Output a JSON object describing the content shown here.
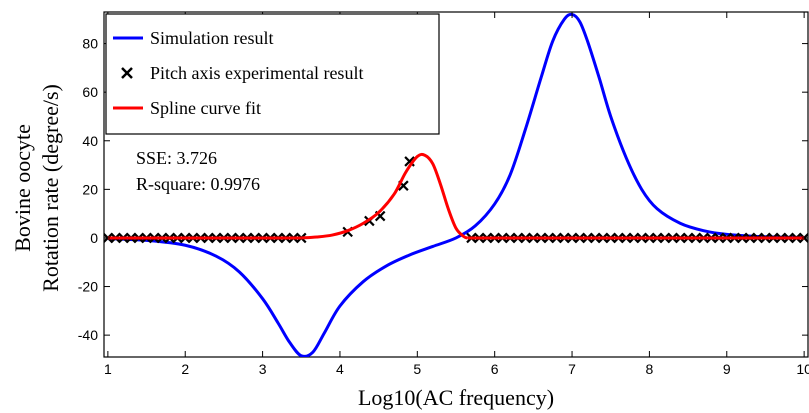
{
  "chart_data": {
    "type": "line",
    "xlabel": "Log10(AC frequency)",
    "ylabel_lines": [
      "Bovine oocyte",
      "Rotation rate (degree/s)"
    ],
    "xlim": [
      0.95,
      10.05
    ],
    "ylim": [
      -49,
      93
    ],
    "x_ticks": [
      1,
      2,
      3,
      4,
      5,
      6,
      7,
      8,
      9,
      10
    ],
    "y_ticks": [
      -40,
      -20,
      0,
      20,
      40,
      60,
      80
    ],
    "grid": false,
    "legend_position": "top-left",
    "annotations": [
      "SSE: 3.726",
      "R-square: 0.9976"
    ],
    "series": [
      {
        "name": "Simulation result",
        "style": "line",
        "color": "#0000ff",
        "x": [
          1.0,
          1.5,
          2.0,
          2.4,
          2.7,
          3.0,
          3.2,
          3.35,
          3.5,
          3.65,
          3.8,
          4.0,
          4.3,
          4.6,
          4.9,
          5.2,
          5.5,
          5.75,
          6.0,
          6.2,
          6.4,
          6.6,
          6.75,
          6.9,
          7.0,
          7.1,
          7.2,
          7.35,
          7.5,
          7.7,
          7.9,
          8.1,
          8.4,
          8.7,
          9.0,
          9.5,
          10.0
        ],
        "y": [
          -0.3,
          -1.0,
          -3.0,
          -7.5,
          -14.0,
          -25.0,
          -35.0,
          -43.0,
          -48.5,
          -47.0,
          -39.0,
          -28.0,
          -18.0,
          -11.5,
          -7.0,
          -3.5,
          0.0,
          5.0,
          14.0,
          26.0,
          45.0,
          66.0,
          81.0,
          90.0,
          92.0,
          89.0,
          81.0,
          66.0,
          50.0,
          33.0,
          20.0,
          12.0,
          6.0,
          3.0,
          1.5,
          0.5,
          0.2
        ]
      },
      {
        "name": "Pitch axis experimental result",
        "style": "marker-x",
        "color": "#000000",
        "x": [
          1.0,
          1.1,
          1.2,
          1.3,
          1.4,
          1.5,
          1.6,
          1.7,
          1.8,
          1.9,
          2.0,
          2.1,
          2.2,
          2.3,
          2.4,
          2.5,
          2.6,
          2.7,
          2.8,
          2.9,
          3.0,
          3.1,
          3.2,
          3.3,
          3.4,
          3.5,
          4.1,
          4.38,
          4.52,
          4.82,
          4.9,
          5.7,
          5.8,
          5.9,
          6.0,
          6.1,
          6.2,
          6.3,
          6.4,
          6.5,
          6.6,
          6.7,
          6.8,
          6.9,
          7.0,
          7.1,
          7.2,
          7.3,
          7.4,
          7.5,
          7.6,
          7.7,
          7.8,
          7.9,
          8.0,
          8.1,
          8.2,
          8.3,
          8.4,
          8.5,
          8.6,
          8.7,
          8.8,
          8.9,
          9.0,
          9.1,
          9.2,
          9.3,
          9.4,
          9.5,
          9.6,
          9.7,
          9.8,
          9.9,
          10.0
        ],
        "y": [
          0,
          0,
          0,
          0,
          0,
          0,
          0,
          0,
          0,
          0,
          0,
          0,
          0,
          0,
          0,
          0,
          0,
          0,
          0,
          0,
          0,
          0,
          0,
          0,
          0,
          0,
          2.5,
          7.0,
          9.0,
          21.5,
          31.5,
          0,
          0,
          0,
          0,
          0,
          0,
          0,
          0,
          0,
          0,
          0,
          0,
          0,
          0,
          0,
          0,
          0,
          0,
          0,
          0,
          0,
          0,
          0,
          0,
          0,
          0,
          0,
          0,
          0,
          0,
          0,
          0,
          0,
          0,
          0,
          0,
          0,
          0,
          0,
          0,
          0,
          0,
          0,
          0
        ]
      },
      {
        "name": "Spline curve fit",
        "style": "line",
        "color": "#ff0000",
        "x": [
          3.5,
          3.7,
          3.9,
          4.1,
          4.3,
          4.5,
          4.7,
          4.85,
          5.0,
          5.1,
          5.2,
          5.3,
          5.4,
          5.5,
          5.6,
          5.65
        ],
        "y": [
          0.0,
          0.4,
          1.2,
          3.0,
          6.0,
          10.5,
          18.0,
          27.0,
          33.5,
          34.0,
          30.5,
          22.0,
          12.0,
          4.0,
          0.6,
          0.0
        ]
      },
      {
        "name": "",
        "style": "line",
        "color": "#ff0000",
        "x": [
          1.0,
          3.5
        ],
        "y": [
          0,
          0
        ]
      },
      {
        "name": "",
        "style": "line",
        "color": "#ff0000",
        "x": [
          5.65,
          10.0
        ],
        "y": [
          0,
          0
        ]
      }
    ]
  }
}
